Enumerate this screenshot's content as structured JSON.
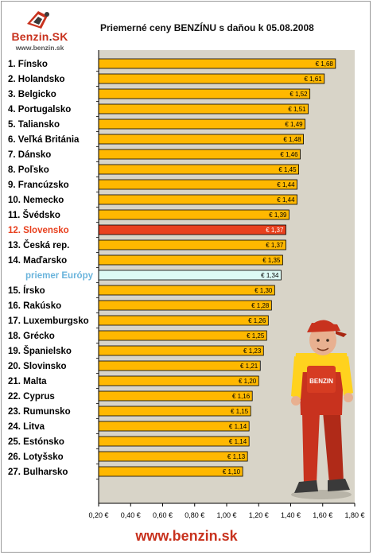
{
  "brand": {
    "name": "Benzin",
    "name_suffix": "SK",
    "url_small": "www.benzin.sk",
    "footer_url": "www.benzin.sk",
    "accent_color": "#c8321e"
  },
  "chart_data": {
    "type": "bar",
    "orientation": "horizontal",
    "title": "Priemerné ceny BENZÍNU s daňou k 05.08.2008",
    "categories": [
      "1. Fínsko",
      "2. Holandsko",
      "3. Belgicko",
      "4. Portugalsko",
      "5. Taliansko",
      "6. Veľká Británia",
      "7. Dánsko",
      "8. Poľsko",
      "9. Francúzsko",
      "10. Nemecko",
      "11. Švédsko",
      "12. Slovensko",
      "13. Česká rep.",
      "14. Maďarsko",
      "priemer Európy",
      "15. Írsko",
      "16. Rakúsko",
      "17. Luxemburgsko",
      "18. Grécko",
      "19. Španielsko",
      "20. Slovinsko",
      "21. Malta",
      "22. Cyprus",
      "23. Rumunsko",
      "24. Litva",
      "25. Estónsko",
      "26. Lotyšsko",
      "27. Bulharsko"
    ],
    "values": [
      1.68,
      1.61,
      1.52,
      1.51,
      1.49,
      1.48,
      1.46,
      1.45,
      1.44,
      1.44,
      1.39,
      1.37,
      1.37,
      1.35,
      1.34,
      1.3,
      1.28,
      1.26,
      1.25,
      1.23,
      1.21,
      1.2,
      1.16,
      1.15,
      1.14,
      1.14,
      1.13,
      1.1
    ],
    "value_labels": [
      "€ 1,68",
      "€ 1,61",
      "€ 1,52",
      "€ 1,51",
      "€ 1,49",
      "€ 1,48",
      "€ 1,46",
      "€ 1,45",
      "€ 1,44",
      "€ 1,44",
      "€ 1,39",
      "€ 1,37",
      "€ 1,37",
      "€ 1,35",
      "€ 1,34",
      "€ 1,30",
      "€ 1,28",
      "€ 1,26",
      "€ 1,25",
      "€ 1,23",
      "€ 1,21",
      "€ 1,20",
      "€ 1,16",
      "€ 1,15",
      "€ 1,14",
      "€ 1,14",
      "€ 1,13",
      "€ 1,10"
    ],
    "highlight": {
      "category": "12. Slovensko",
      "color": "#e8401e"
    },
    "average": {
      "category": "priemer Európy",
      "color": "#dcfaf5",
      "label_color": "#6ab4dc"
    },
    "bar_color": "#ffb800",
    "plot_background": "#d8d4c8",
    "xlim": [
      0.2,
      1.8
    ],
    "x_ticks": [
      0.2,
      0.4,
      0.6,
      0.8,
      1.0,
      1.2,
      1.4,
      1.6,
      1.8
    ],
    "x_tick_labels": [
      "0,20 €",
      "0,40 €",
      "0,60 €",
      "0,80 €",
      "1,00 €",
      "1,20 €",
      "1,40 €",
      "1,60 €",
      "1,80 €"
    ],
    "grid": false,
    "legend": "none"
  }
}
